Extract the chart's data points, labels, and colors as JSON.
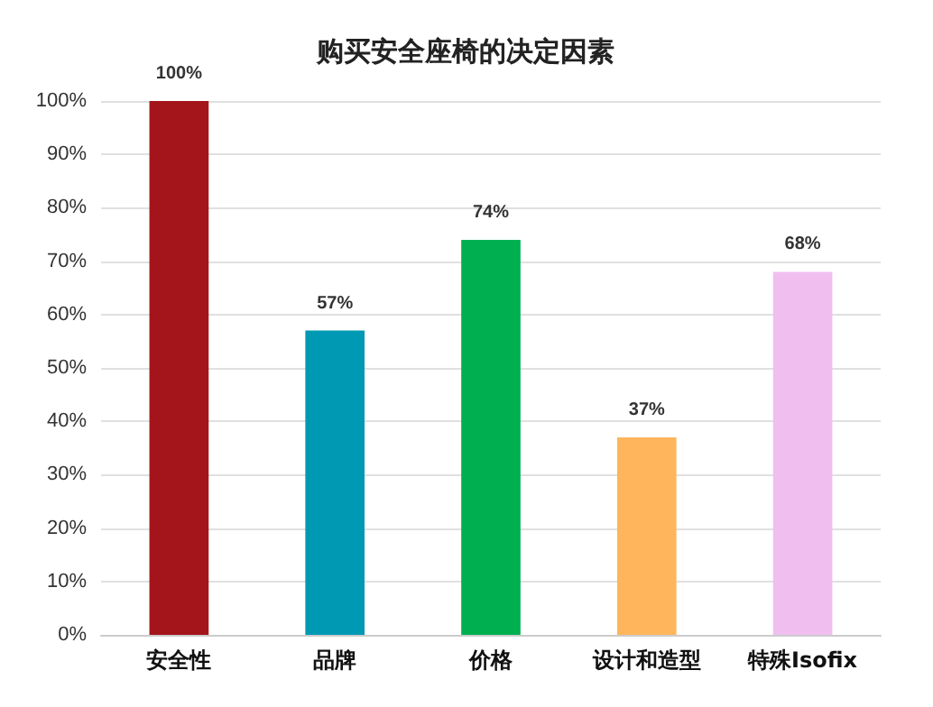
{
  "chart_data": {
    "type": "bar",
    "title": "购买安全座椅的决定因素",
    "categories": [
      "安全性",
      "品牌",
      "价格",
      "设计和造型",
      "特殊Isofix"
    ],
    "values": [
      100,
      57,
      74,
      37,
      68
    ],
    "colors": [
      "#a3141b",
      "#0099b4",
      "#00b050",
      "#ffb55c",
      "#f0bff0"
    ],
    "value_labels": [
      "100%",
      "57%",
      "74%",
      "37%",
      "68%"
    ],
    "ylim": [
      0,
      100
    ],
    "yticks": [
      {
        "value": 0,
        "label": "0%"
      },
      {
        "value": 10,
        "label": "10%"
      },
      {
        "value": 20,
        "label": "20%"
      },
      {
        "value": 30,
        "label": "30%"
      },
      {
        "value": 40,
        "label": "40%"
      },
      {
        "value": 50,
        "label": "50%"
      },
      {
        "value": 60,
        "label": "60%"
      },
      {
        "value": 70,
        "label": "70%"
      },
      {
        "value": 80,
        "label": "80%"
      },
      {
        "value": 90,
        "label": "90%"
      },
      {
        "value": 100,
        "label": "100%"
      }
    ],
    "grid": "y"
  }
}
